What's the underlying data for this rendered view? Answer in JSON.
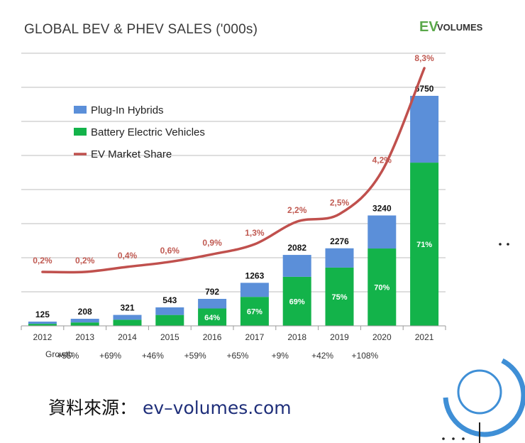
{
  "chart_data": {
    "type": "bar",
    "stacked": true,
    "title": "GLOBAL BEV & PHEV SALES ('000s)",
    "logo": {
      "ev": "EV",
      "volumes": "VOLUMES"
    },
    "categories": [
      "2012",
      "2013",
      "2014",
      "2015",
      "2016",
      "2017",
      "2018",
      "2019",
      "2020",
      "2021"
    ],
    "series": [
      {
        "name": "Battery Electric Vehicles",
        "color": "#13b34a",
        "values": [
          60,
          100,
          180,
          320,
          510,
          850,
          1440,
          1710,
          2270,
          4790
        ]
      },
      {
        "name": "Plug-In Hybrids",
        "color": "#5b8fd9",
        "values": [
          65,
          108,
          141,
          223,
          282,
          413,
          642,
          566,
          970,
          1960
        ]
      }
    ],
    "totals": [
      "125",
      "208",
      "321",
      "543",
      "792",
      "1263",
      "2082",
      "2276",
      "3240",
      "6750"
    ],
    "bev_share_labels": [
      "",
      "",
      "",
      "",
      "64%",
      "67%",
      "69%",
      "75%",
      "70%",
      "71%"
    ],
    "market_share": {
      "name": "EV Market Share",
      "color": "#c0504d",
      "values": [
        0.2,
        0.2,
        0.4,
        0.6,
        0.9,
        1.3,
        2.2,
        2.5,
        4.2,
        8.3
      ],
      "labels": [
        "0,2%",
        "0,2%",
        "0,4%",
        "0,6%",
        "0,9%",
        "1,3%",
        "2,2%",
        "2,5%",
        "4,2%",
        "8,3%"
      ]
    },
    "growth_label": "Growth",
    "growth": [
      "+55%",
      "+69%",
      "+46%",
      "+59%",
      "+65%",
      "+9%",
      "+42%",
      "+108%"
    ],
    "ylim": [
      0,
      8000
    ],
    "grid": true,
    "legend_position": "top-left",
    "legend": [
      {
        "label": "Plug-In Hybrids",
        "color": "#5b8fd9",
        "kind": "box"
      },
      {
        "label": "Battery Electric Vehicles",
        "color": "#13b34a",
        "kind": "box"
      },
      {
        "label": "EV Market Share",
        "color": "#c0504d",
        "kind": "line"
      }
    ]
  },
  "source": {
    "label": "資料來源：",
    "url": "ev–volumes.com"
  },
  "decor": {
    "accent": "#3f8fd6"
  }
}
